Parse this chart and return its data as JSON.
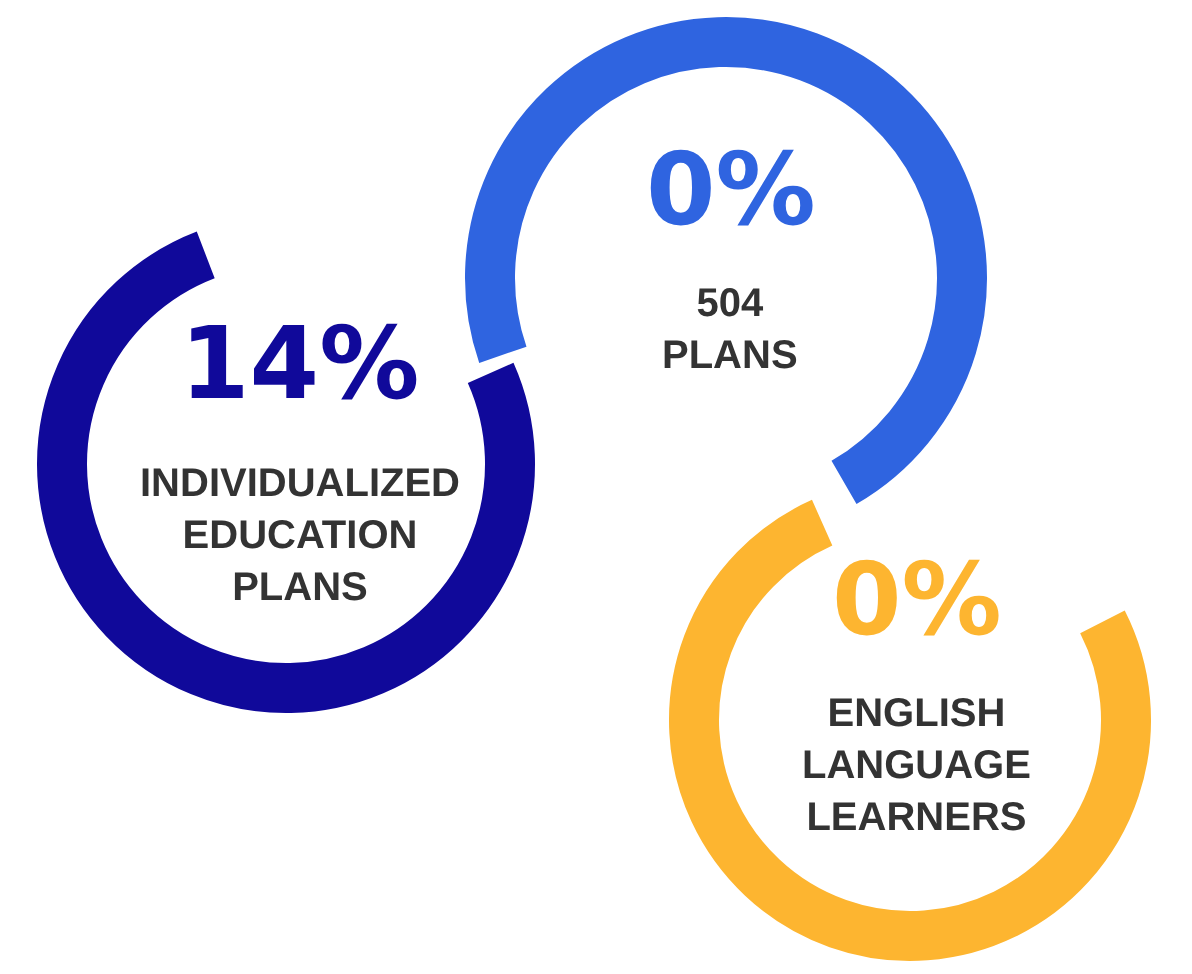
{
  "chart_data": {
    "type": "other",
    "categories": [
      "INDIVIDUALIZED EDUCATION PLANS",
      "504 PLANS",
      "ENGLISH LANGUAGE LEARNERS"
    ],
    "values": [
      14,
      0,
      0
    ],
    "value_labels": [
      "14%",
      "0%",
      "0%"
    ],
    "colors": [
      "#10099a",
      "#2f64e0",
      "#fdb530"
    ]
  }
}
